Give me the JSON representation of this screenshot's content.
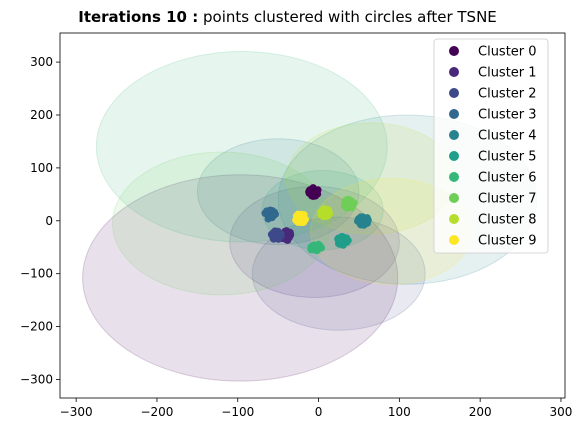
{
  "chart_data": {
    "type": "scatter",
    "title_bold": "Iterations 10 :",
    "title_rest": "points clustered with circles after TSNE",
    "xlabel": "",
    "ylabel": "",
    "xlim": [
      -320,
      305
    ],
    "ylim": [
      -335,
      355
    ],
    "xticks": [
      -300,
      -200,
      -100,
      0,
      100,
      200,
      300
    ],
    "yticks": [
      -300,
      -200,
      -100,
      0,
      100,
      200,
      300
    ],
    "grid": false,
    "legend_position": "top-right",
    "series": [
      {
        "name": "Cluster 0",
        "color": "#440154",
        "center": [
          -7,
          55
        ],
        "circle": {
          "cx": -97,
          "cy": -108,
          "r": 195
        }
      },
      {
        "name": "Cluster 1",
        "color": "#482878",
        "center": [
          -40,
          -28
        ],
        "circle": {
          "cx": -5,
          "cy": -40,
          "r": 105
        }
      },
      {
        "name": "Cluster 2",
        "color": "#3e4989",
        "center": [
          -52,
          -27
        ],
        "circle": {
          "cx": 25,
          "cy": -100,
          "r": 107
        }
      },
      {
        "name": "Cluster 3",
        "color": "#31688e",
        "center": [
          -60,
          12
        ],
        "circle": {
          "cx": -50,
          "cy": 55,
          "r": 100
        }
      },
      {
        "name": "Cluster 4",
        "color": "#26828e",
        "center": [
          55,
          0
        ],
        "circle": {
          "cx": 110,
          "cy": 40,
          "r": 160
        }
      },
      {
        "name": "Cluster 5",
        "color": "#1f9e89",
        "center": [
          30,
          -37
        ],
        "circle": {
          "cx": 5,
          "cy": 20,
          "r": 75
        }
      },
      {
        "name": "Cluster 6",
        "color": "#35b779",
        "center": [
          -3,
          -52
        ],
        "circle": {
          "cx": -95,
          "cy": 140,
          "r": 180
        }
      },
      {
        "name": "Cluster 7",
        "color": "#6ece58",
        "center": [
          38,
          32
        ],
        "circle": {
          "cx": -120,
          "cy": -5,
          "r": 135
        }
      },
      {
        "name": "Cluster 8",
        "color": "#b5de2b",
        "center": [
          7,
          15
        ],
        "circle": {
          "cx": 65,
          "cy": 80,
          "r": 105
        }
      },
      {
        "name": "Cluster 9",
        "color": "#fde725",
        "center": [
          -22,
          5
        ],
        "circle": {
          "cx": 90,
          "cy": -20,
          "r": 100
        }
      }
    ]
  }
}
